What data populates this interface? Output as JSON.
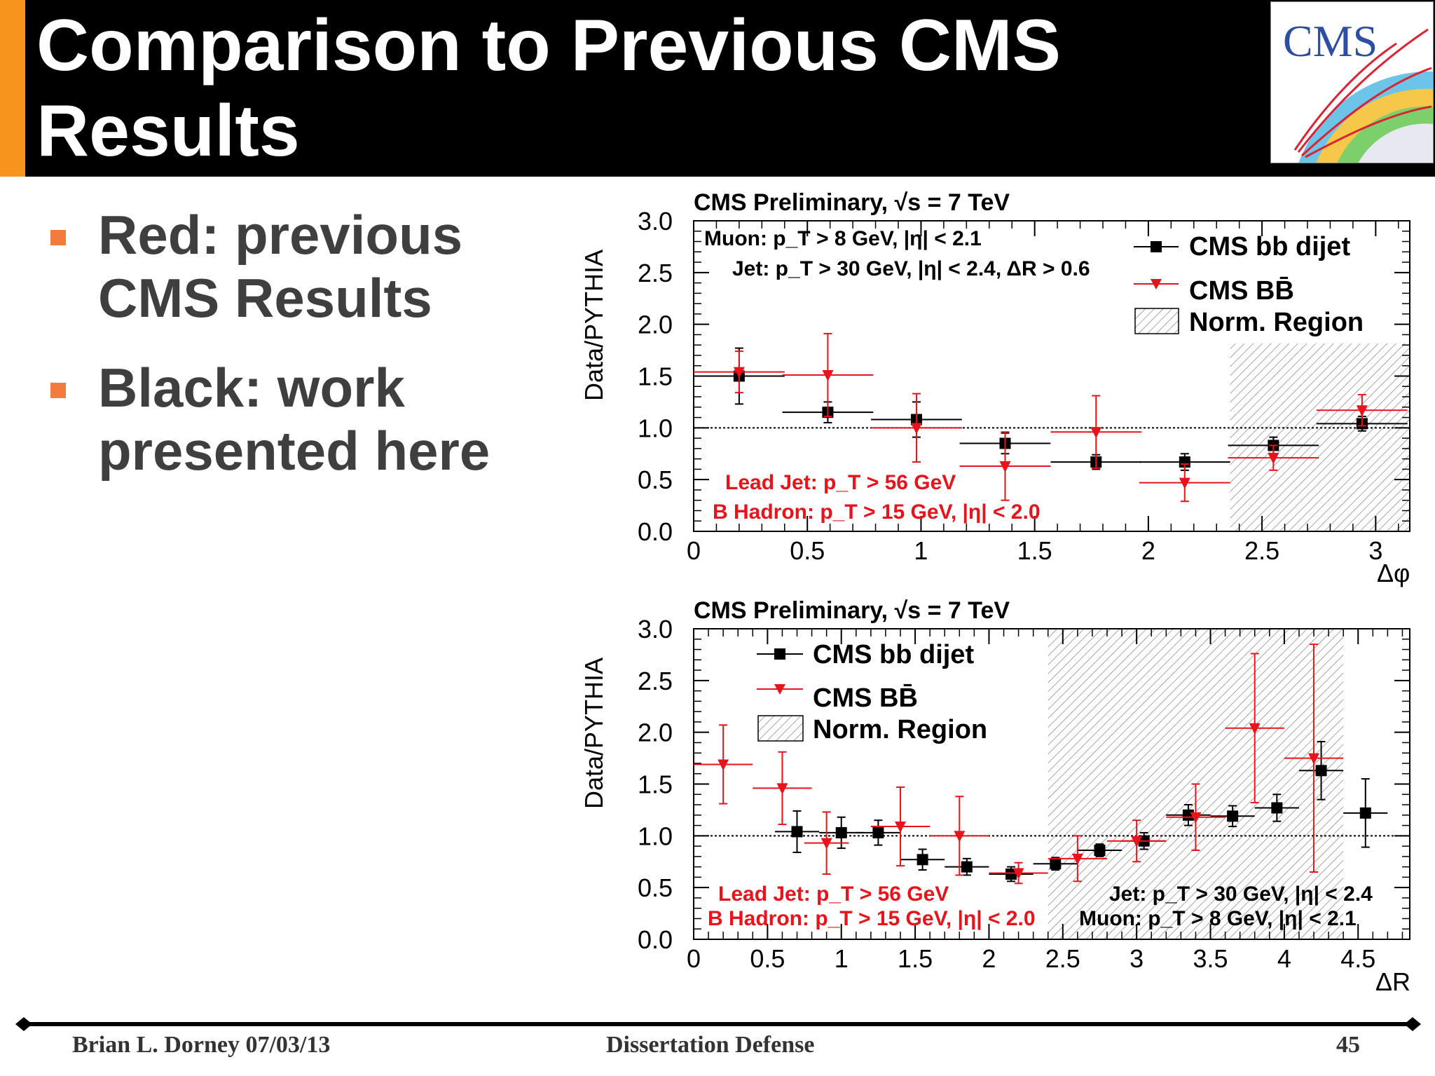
{
  "slide": {
    "title": "Comparison to Previous CMS Results",
    "logo_text": "CMS",
    "bullets": [
      "Red: previous CMS Results",
      "Black: work presented here"
    ],
    "footer": {
      "left": "Brian L. Dorney 07/03/13",
      "center": "Dissertation Defense",
      "page": "45"
    },
    "colors": {
      "accent": "#f7941d",
      "bullet": "#f47b3e",
      "title_bg": "#000000",
      "text": "#3f3f3f"
    }
  },
  "chart_data": [
    {
      "type": "scatter",
      "title": "CMS Preliminary, √s = 7 TeV",
      "xlabel": "Δφ",
      "ylabel": "Data/PYTHIA",
      "xlim": [
        0,
        3.15
      ],
      "ylim": [
        0,
        3
      ],
      "xticks": [
        0,
        0.5,
        1,
        1.5,
        2,
        2.5,
        3
      ],
      "yticks": [
        0,
        0.5,
        1,
        1.5,
        2,
        2.5,
        3
      ],
      "reference_line": 1.0,
      "norm_region": [
        2.36,
        3.15
      ],
      "legend_position": "top-right",
      "legend": [
        "CMS bb dijet",
        "CMS BB̄",
        "Norm. Region"
      ],
      "annotations_black": [
        "Muon: p_T > 8 GeV, |η| < 2.1",
        "Jet: p_T > 30 GeV, |η| < 2.4, ΔR > 0.6"
      ],
      "annotations_red": [
        "Lead Jet: p_T > 56 GeV",
        "B Hadron: p_T > 15 GeV, |η| < 2.0"
      ],
      "series": [
        {
          "name": "CMS bb dijet",
          "color": "#000000",
          "marker": "square",
          "x": [
            0.2,
            0.59,
            0.98,
            1.37,
            1.77,
            2.16,
            2.55,
            2.94
          ],
          "xerr": [
            0.2,
            0.2,
            0.2,
            0.2,
            0.2,
            0.2,
            0.2,
            0.2
          ],
          "y": [
            1.5,
            1.15,
            1.08,
            0.85,
            0.67,
            0.67,
            0.83,
            1.04
          ],
          "yerr": [
            0.27,
            0.1,
            0.17,
            0.1,
            0.07,
            0.08,
            0.08,
            0.07
          ]
        },
        {
          "name": "CMS BB̄",
          "color": "#e8131b",
          "marker": "triangle-down",
          "x": [
            0.2,
            0.59,
            0.98,
            1.37,
            1.77,
            2.16,
            2.55,
            2.94
          ],
          "xerr": [
            0.2,
            0.2,
            0.2,
            0.2,
            0.2,
            0.2,
            0.2,
            0.2
          ],
          "y": [
            1.54,
            1.51,
            1.0,
            0.63,
            0.96,
            0.47,
            0.71,
            1.17
          ],
          "yerr": [
            0.2,
            0.4,
            0.33,
            0.33,
            0.35,
            0.18,
            0.12,
            0.15
          ]
        }
      ]
    },
    {
      "type": "scatter",
      "title": "CMS Preliminary, √s = 7 TeV",
      "xlabel": "ΔR",
      "ylabel": "Data/PYTHIA",
      "xlim": [
        0,
        4.85
      ],
      "ylim": [
        0,
        3
      ],
      "xticks": [
        0,
        0.5,
        1,
        1.5,
        2,
        2.5,
        3,
        3.5,
        4,
        4.5
      ],
      "yticks": [
        0,
        0.5,
        1,
        1.5,
        2,
        2.5,
        3
      ],
      "reference_line": 1.0,
      "norm_region": [
        2.4,
        4.4
      ],
      "legend_position": "top-left",
      "legend": [
        "CMS bb dijet",
        "CMS BB̄",
        "Norm. Region"
      ],
      "annotations_red": [
        "Lead Jet: p_T > 56 GeV",
        "B Hadron: p_T > 15 GeV, |η| < 2.0"
      ],
      "annotations_black": [
        "Jet: p_T > 30 GeV, |η| < 2.4",
        "Muon: p_T > 8 GeV, |η| < 2.1"
      ],
      "series": [
        {
          "name": "CMS bb dijet",
          "color": "#000000",
          "marker": "square",
          "x": [
            0.7,
            1.0,
            1.25,
            1.55,
            1.85,
            2.15,
            2.45,
            2.75,
            3.05,
            3.35,
            3.65,
            3.95,
            4.25,
            4.55
          ],
          "xerr": [
            0.15,
            0.15,
            0.15,
            0.15,
            0.15,
            0.15,
            0.15,
            0.15,
            0.15,
            0.15,
            0.15,
            0.15,
            0.15,
            0.15
          ],
          "y": [
            1.04,
            1.03,
            1.03,
            0.77,
            0.7,
            0.63,
            0.73,
            0.86,
            0.95,
            1.2,
            1.19,
            1.27,
            1.63,
            1.22
          ],
          "yerr": [
            0.2,
            0.15,
            0.12,
            0.1,
            0.08,
            0.07,
            0.06,
            0.06,
            0.08,
            0.1,
            0.1,
            0.13,
            0.28,
            0.33
          ]
        },
        {
          "name": "CMS BB̄",
          "color": "#e8131b",
          "marker": "triangle-down",
          "x": [
            0.2,
            0.6,
            0.9,
            1.4,
            1.8,
            2.2,
            2.6,
            3.0,
            3.4,
            3.8,
            4.2
          ],
          "xerr": [
            0.2,
            0.2,
            0.15,
            0.2,
            0.2,
            0.2,
            0.2,
            0.2,
            0.2,
            0.2,
            0.2
          ],
          "y": [
            1.69,
            1.46,
            0.93,
            1.09,
            1.0,
            0.64,
            0.78,
            0.95,
            1.18,
            2.04,
            1.75
          ],
          "yerr": [
            0.38,
            0.35,
            0.3,
            0.38,
            0.38,
            0.1,
            0.22,
            0.2,
            0.32,
            0.72,
            1.1
          ]
        }
      ]
    }
  ]
}
